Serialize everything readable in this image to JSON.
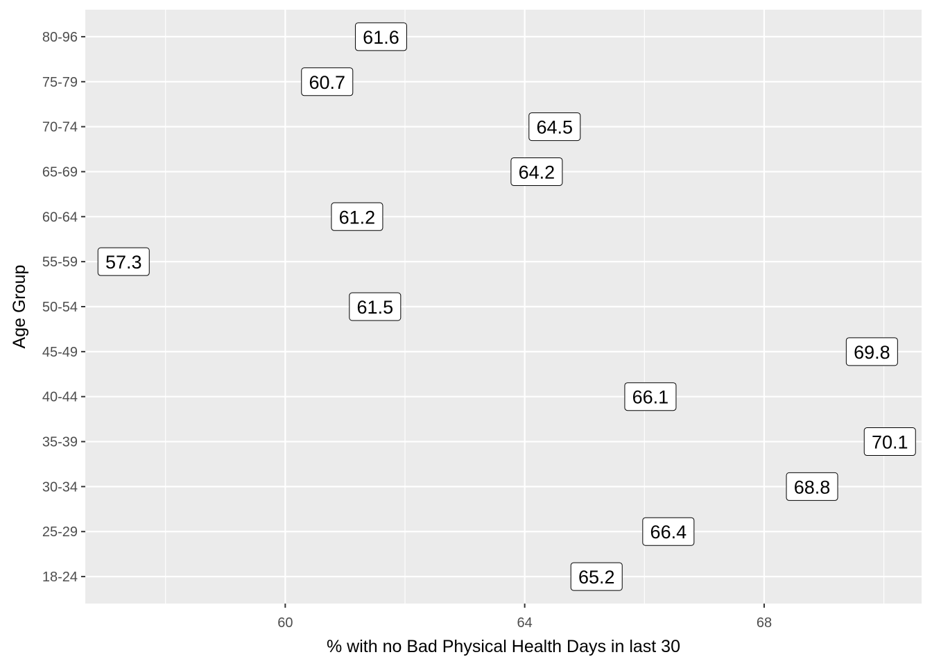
{
  "chart_data": {
    "type": "scatter",
    "geom": "label",
    "xlabel": "% with no Bad Physical Health Days in last 30",
    "ylabel": "Age Group",
    "xlim": [
      56.66,
      70.63
    ],
    "x_ticks": [
      60,
      64,
      68
    ],
    "x_minor_ticks": [
      58,
      62,
      66,
      70
    ],
    "categories": [
      "18-24",
      "25-29",
      "30-34",
      "35-39",
      "40-44",
      "45-49",
      "50-54",
      "55-59",
      "60-64",
      "65-69",
      "70-74",
      "75-79",
      "80-96"
    ],
    "points": [
      {
        "category": "18-24",
        "x": 65.2,
        "label": "65.2"
      },
      {
        "category": "25-29",
        "x": 66.4,
        "label": "66.4"
      },
      {
        "category": "30-34",
        "x": 68.8,
        "label": "68.8"
      },
      {
        "category": "35-39",
        "x": 70.1,
        "label": "70.1"
      },
      {
        "category": "40-44",
        "x": 66.1,
        "label": "66.1"
      },
      {
        "category": "45-49",
        "x": 69.8,
        "label": "69.8"
      },
      {
        "category": "50-54",
        "x": 61.5,
        "label": "61.5"
      },
      {
        "category": "55-59",
        "x": 57.3,
        "label": "57.3"
      },
      {
        "category": "60-64",
        "x": 61.2,
        "label": "61.2"
      },
      {
        "category": "65-69",
        "x": 64.2,
        "label": "64.2"
      },
      {
        "category": "70-74",
        "x": 64.5,
        "label": "64.5"
      },
      {
        "category": "75-79",
        "x": 60.7,
        "label": "60.7"
      },
      {
        "category": "80-96",
        "x": 61.6,
        "label": "61.6"
      }
    ],
    "grid": true,
    "panel_background": "#ebebeb",
    "grid_color": "#ffffff",
    "label_fill": "#ffffff",
    "label_border": "#000000"
  }
}
